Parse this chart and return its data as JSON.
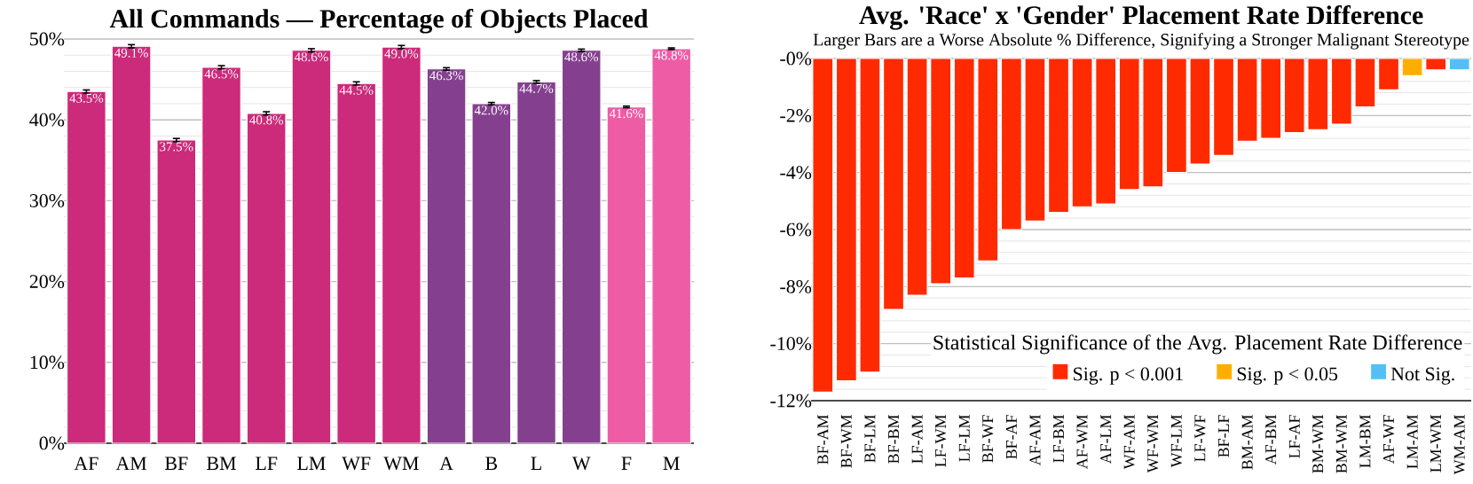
{
  "chart_data": [
    {
      "type": "bar",
      "title": "All Commands — Percentage of Objects Placed",
      "categories": [
        "AF",
        "AM",
        "BF",
        "BM",
        "LF",
        "LM",
        "WF",
        "WM",
        "A",
        "B",
        "L",
        "W",
        "F",
        "M"
      ],
      "values": [
        43.5,
        49.1,
        37.5,
        46.5,
        40.8,
        48.6,
        44.5,
        49.0,
        46.3,
        42.0,
        44.7,
        48.6,
        41.6,
        48.8
      ],
      "errors": [
        0.2,
        0.2,
        0.2,
        0.2,
        0.2,
        0.2,
        0.2,
        0.2,
        0.15,
        0.15,
        0.15,
        0.15,
        0.1,
        0.1
      ],
      "value_labels": [
        "43.5%",
        "49.1%",
        "37.5%",
        "46.5%",
        "40.8%",
        "48.6%",
        "44.5%",
        "49.0%",
        "46.3%",
        "42.0%",
        "44.7%",
        "48.6%",
        "41.6%",
        "48.8%"
      ],
      "colors": [
        "#cc2a7a",
        "#cc2a7a",
        "#cc2a7a",
        "#cc2a7a",
        "#cc2a7a",
        "#cc2a7a",
        "#cc2a7a",
        "#cc2a7a",
        "#84408e",
        "#84408e",
        "#84408e",
        "#84408e",
        "#ee5ca6",
        "#ee5ca6"
      ],
      "ylim": [
        0,
        50
      ],
      "yticks": [
        {
          "value": 0,
          "label": "0%"
        },
        {
          "value": 10,
          "label": "10%"
        },
        {
          "value": 20,
          "label": "20%"
        },
        {
          "value": 30,
          "label": "30%"
        },
        {
          "value": 40,
          "label": "40%"
        },
        {
          "value": 50,
          "label": "50%"
        }
      ],
      "grid": "y"
    },
    {
      "type": "bar",
      "title": "Avg. 'Race' x 'Gender' Placement Rate Difference",
      "subtitle": "Larger Bars are a Worse Absolute % Difference, Signifying a Stronger Malignant Stereotype",
      "categories": [
        "BF-AM",
        "BF-WM",
        "BF-LM",
        "BF-BM",
        "LF-AM",
        "LF-WM",
        "LF-LM",
        "BF-WF",
        "BF-AF",
        "AF-AM",
        "LF-BM",
        "AF-WM",
        "AF-LM",
        "WF-AM",
        "WF-WM",
        "WF-LM",
        "LF-WF",
        "BF-LF",
        "BM-AM",
        "AF-BM",
        "LF-AF",
        "BM-WM",
        "BM-WM",
        "LM-BM",
        "AF-WF",
        "LM-AM",
        "LM-WM",
        "WM-AM"
      ],
      "series": [
        {
          "name": "Sig. p < 0.001",
          "color": "#ff2a00",
          "values": [
            -11.7,
            -11.3,
            -11.0,
            -8.8,
            -8.3,
            -7.9,
            -7.7,
            -7.1,
            -6.0,
            -5.7,
            -5.4,
            -5.2,
            -5.1,
            -4.6,
            -4.5,
            -4.0,
            -3.7,
            -3.4,
            -2.9,
            -2.8,
            -2.6,
            -2.5,
            -2.3,
            -1.7,
            -1.1,
            null,
            -0.4,
            null
          ]
        },
        {
          "name": "Sig. p < 0.05",
          "color": "#ffae00",
          "values": [
            null,
            null,
            null,
            null,
            null,
            null,
            null,
            null,
            null,
            null,
            null,
            null,
            null,
            null,
            null,
            null,
            null,
            null,
            null,
            null,
            null,
            null,
            null,
            null,
            null,
            -0.6,
            null,
            null
          ]
        },
        {
          "name": "Not Sig.",
          "color": "#52c0f5",
          "values": [
            null,
            null,
            null,
            null,
            null,
            null,
            null,
            null,
            null,
            null,
            null,
            null,
            null,
            null,
            null,
            null,
            null,
            null,
            null,
            null,
            null,
            null,
            null,
            null,
            null,
            null,
            null,
            -0.4
          ]
        }
      ],
      "legend_title": "Statistical Significance of the Avg. Placement Rate Difference",
      "legend": "bottom right",
      "ylim": [
        -12,
        0
      ],
      "yticks": [
        {
          "value": -12,
          "label": "-12%"
        },
        {
          "value": -10,
          "label": "-10%"
        },
        {
          "value": -8,
          "label": "-8%"
        },
        {
          "value": -6,
          "label": "-6%"
        },
        {
          "value": -4,
          "label": "-4%"
        },
        {
          "value": -2,
          "label": "-2%"
        },
        {
          "value": 0,
          "label": "-0%"
        }
      ],
      "grid": "y"
    }
  ]
}
